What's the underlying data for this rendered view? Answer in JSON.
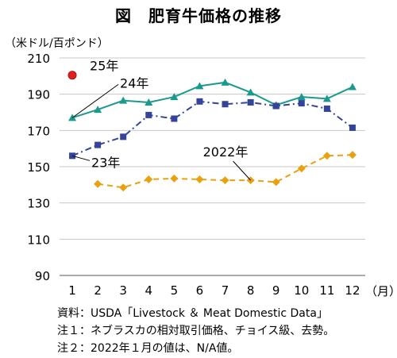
{
  "chart_data": {
    "type": "line",
    "title": "図　肥育牛価格の推移",
    "ylabel": "（米ドル/百ポンド）",
    "x_unit": "（月）",
    "categories": [
      "1",
      "2",
      "3",
      "4",
      "5",
      "6",
      "7",
      "8",
      "9",
      "10",
      "11",
      "12"
    ],
    "ylim": [
      90,
      210
    ],
    "yticks": [
      "90",
      "110",
      "130",
      "150",
      "170",
      "190",
      "210"
    ],
    "grid": true,
    "series": [
      {
        "name": "25年",
        "color": "#e02020",
        "marker": "circle",
        "dash": "none",
        "values": [
          200.5,
          null,
          null,
          null,
          null,
          null,
          null,
          null,
          null,
          null,
          null,
          null
        ]
      },
      {
        "name": "24年",
        "color": "#1a9a8c",
        "marker": "triangle",
        "dash": "none",
        "values": [
          177,
          181.5,
          186.5,
          185.5,
          188.5,
          194.5,
          196.5,
          191,
          184,
          188.5,
          187.5,
          194
        ]
      },
      {
        "name": "23年",
        "color": "#33449a",
        "marker": "square",
        "dash": "dashdot",
        "values": [
          156,
          162,
          166.5,
          178.5,
          176.5,
          186,
          184.5,
          185.5,
          183.5,
          185,
          182,
          171.5
        ]
      },
      {
        "name": "2022年",
        "color": "#e8a210",
        "marker": "diamond",
        "dash": "dash",
        "values": [
          null,
          140.5,
          138.5,
          143,
          143.5,
          143,
          142.5,
          142.5,
          141.5,
          149,
          156,
          156.5
        ]
      }
    ]
  },
  "notes": {
    "source": "資料：USDA「Livestock ＆ Meat Domestic Data」",
    "note1": "注１：ネブラスカの相対取引価格、チョイス級、去勢。",
    "note2": "注２：2022年１月の値は、N/A値。"
  }
}
